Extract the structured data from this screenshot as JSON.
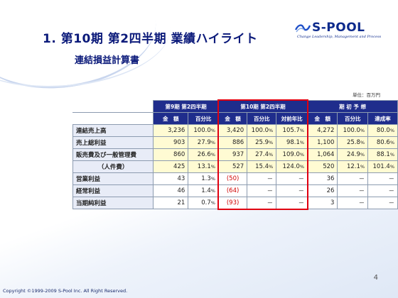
{
  "slide": {
    "title": "1. 第10期 第2四半期 業績ハイライト",
    "subtitle": "連結損益計算書",
    "unit": "単位：百万円",
    "page_number": "4",
    "copyright": "Copyright ©1999-2009 S-Pool Inc. All Right Reserved."
  },
  "logo": {
    "name": "S-POOL",
    "tagline": "Change Leadership, Management and Process"
  },
  "table": {
    "groups": [
      "第9期 第2四半期",
      "第10期 第2四半期",
      "期 初 予 想"
    ],
    "subheaders": [
      "金　額",
      "百分比",
      "金　額",
      "百分比",
      "対前年比",
      "金　額",
      "百分比",
      "達成率"
    ],
    "rows": [
      {
        "label": "連結売上高",
        "cells": [
          "3,236",
          "100.0",
          "3,420",
          "100.0",
          "105.7",
          "4,272",
          "100.0",
          "80.0"
        ]
      },
      {
        "label": "売上総利益",
        "cells": [
          "903",
          "27.9",
          "886",
          "25.9",
          "98.1",
          "1,100",
          "25.8",
          "80.6"
        ]
      },
      {
        "label": "販売費及び一般管理費",
        "cells": [
          "860",
          "26.6",
          "937",
          "27.4",
          "109.0",
          "1,064",
          "24.9",
          "88.1"
        ]
      },
      {
        "label": "（人件費）",
        "cells": [
          "425",
          "13.1",
          "527",
          "15.4",
          "124.0",
          "520",
          "12.1",
          "101.4"
        ]
      },
      {
        "label": "営業利益",
        "cells": [
          "43",
          "1.3",
          "(50)",
          "－",
          "－",
          "36",
          "－",
          "－"
        ]
      },
      {
        "label": "経常利益",
        "cells": [
          "46",
          "1.4",
          "(64)",
          "－",
          "－",
          "26",
          "－",
          "－"
        ]
      },
      {
        "label": "当期純利益",
        "cells": [
          "21",
          "0.7",
          "(93)",
          "－",
          "－",
          "3",
          "－",
          "－"
        ]
      }
    ],
    "percent_sign": "%"
  },
  "colors": {
    "header_bg": "#1f2d8c",
    "highlight_bg": "#fffbd3",
    "negative": "#d00000",
    "box": "#e00010"
  }
}
